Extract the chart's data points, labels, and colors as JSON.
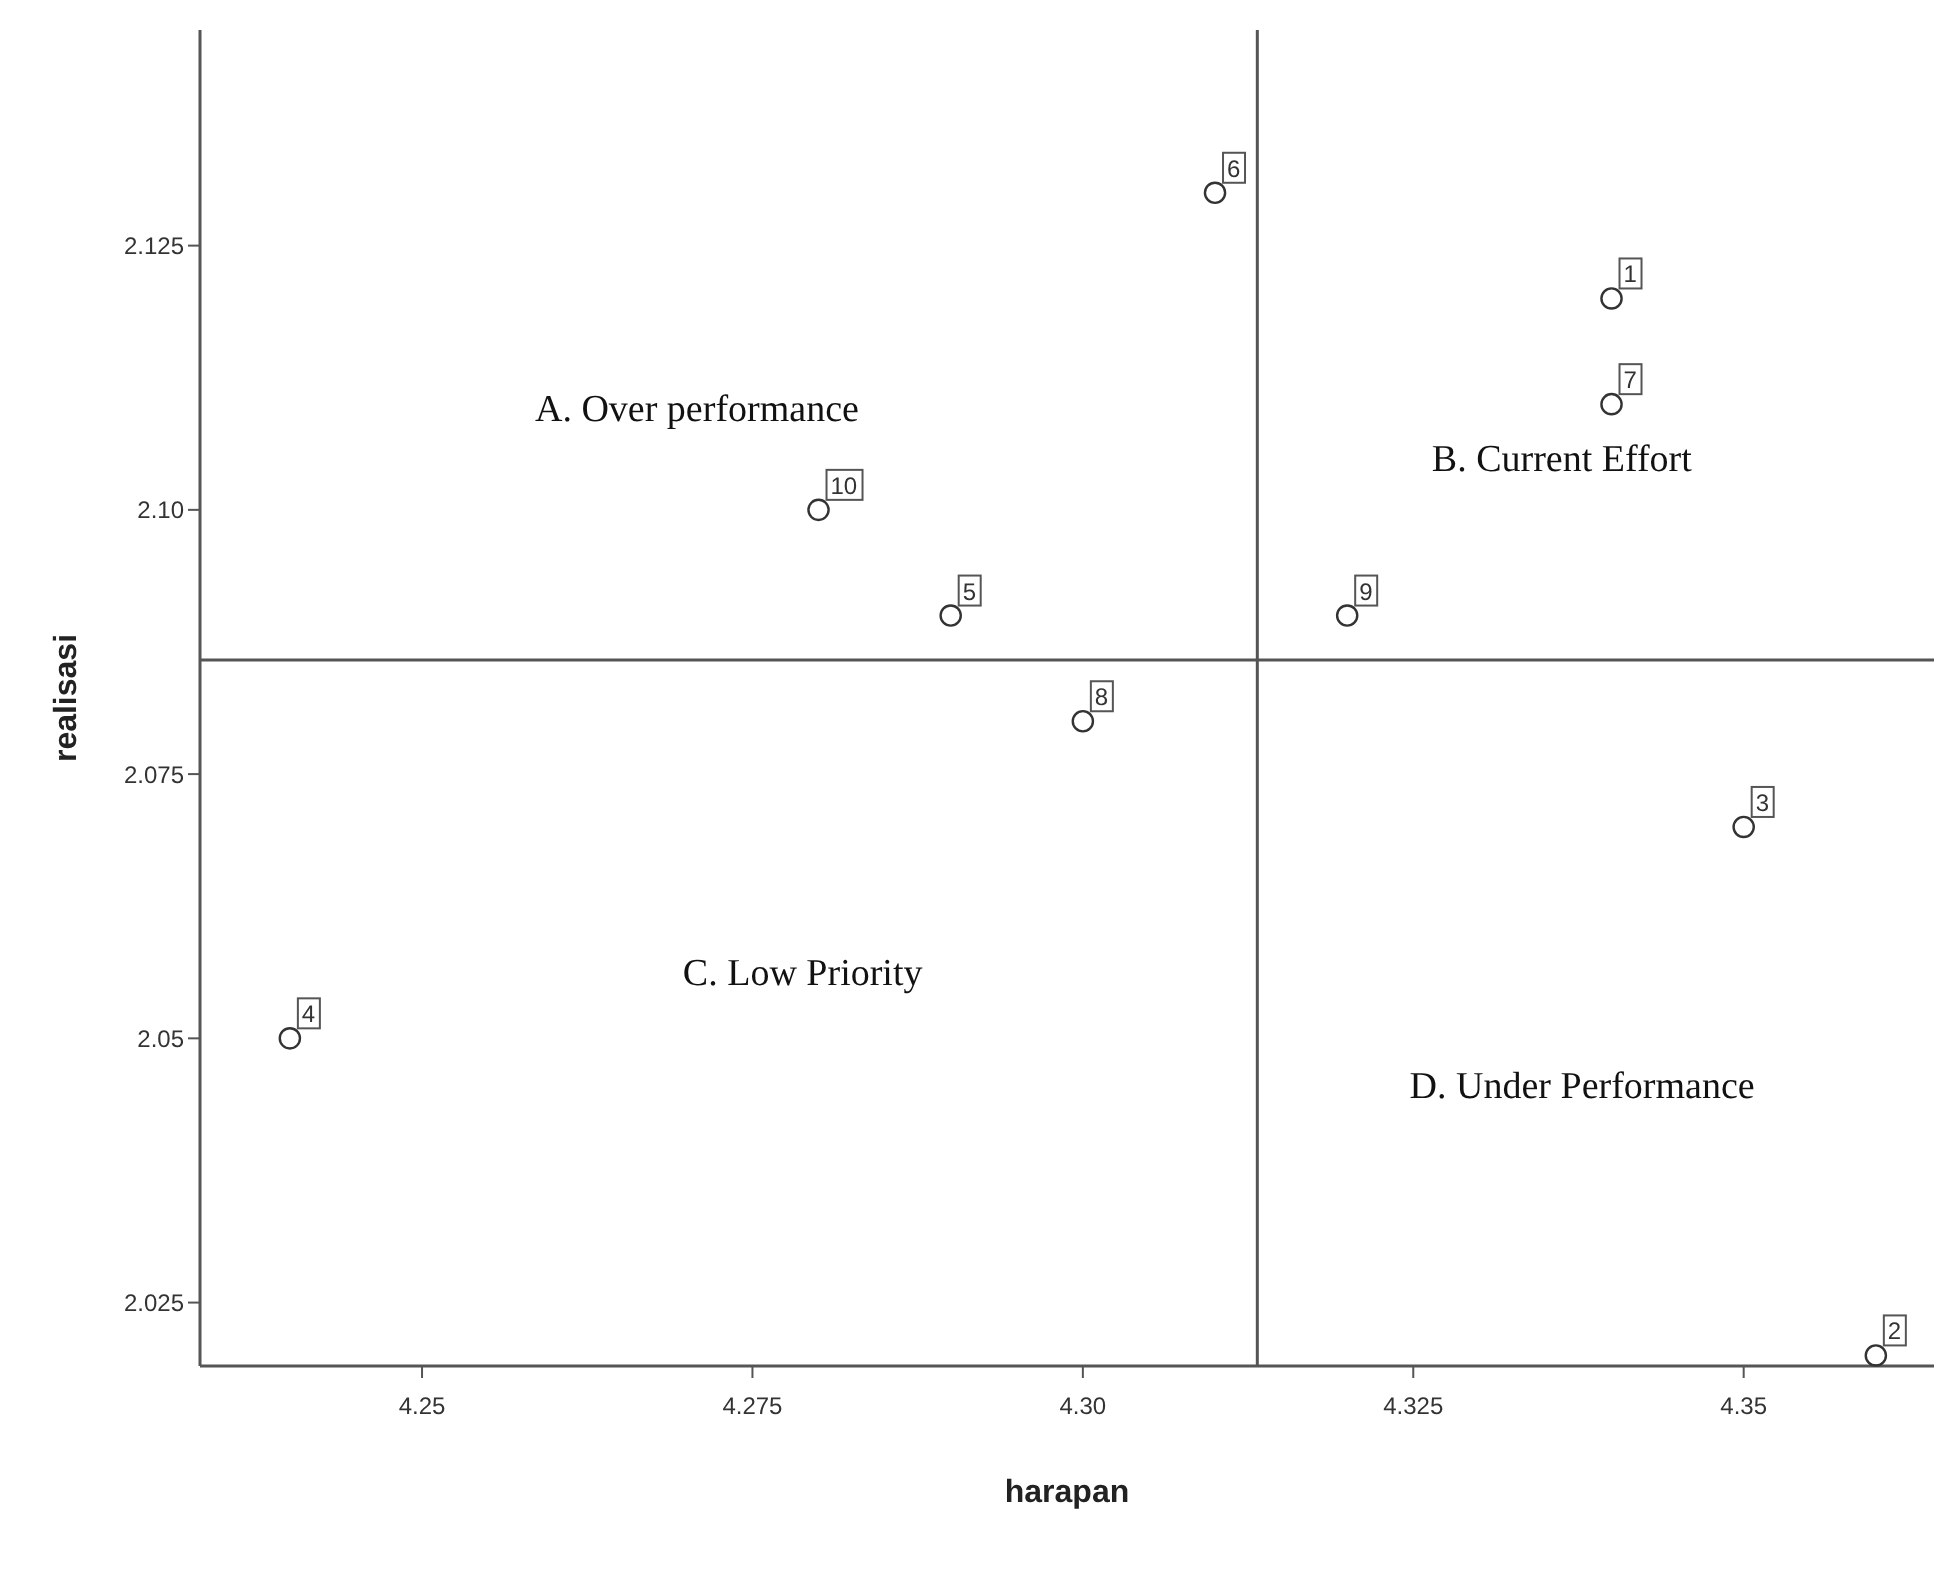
{
  "chart_data": {
    "type": "scatter",
    "xlabel": "harapan",
    "ylabel": "realisasi",
    "x": [
      4.34,
      4.36,
      4.35,
      4.24,
      4.29,
      4.31,
      4.34,
      4.3,
      4.32,
      4.28
    ],
    "values": [
      2.12,
      2.02,
      2.07,
      2.05,
      2.09,
      2.13,
      2.11,
      2.08,
      2.09,
      2.1
    ],
    "color": "#333333",
    "marker": "circle",
    "grid": false,
    "xlim": [
      4.2332,
      4.3644
    ],
    "xticks": [
      4.25,
      4.275,
      {
        "value": 4.3,
        "label": "4.30"
      },
      4.325,
      4.35
    ],
    "ylim": [
      2.019,
      2.1454
    ],
    "yticks": [
      2.025,
      2.05,
      2.075,
      {
        "value": 2.1,
        "label": "2.10"
      },
      2.125
    ],
    "ref_lines": [
      {
        "axis": "x",
        "value": 4.3132,
        "color": "#555555"
      },
      {
        "axis": "y",
        "value": 2.0858,
        "color": "#555555"
      }
    ],
    "annotations": [
      "A. Over performance",
      "B. Current Effort",
      "C. Low Priority",
      "D. Under Performance",
      {
        "text": "1",
        "x": 4.34,
        "y": 2.12
      },
      {
        "text": "2",
        "x": 4.36,
        "y": 2.02
      },
      {
        "text": "3",
        "x": 4.35,
        "y": 2.07
      },
      {
        "text": "4",
        "x": 4.24,
        "y": 2.05
      },
      {
        "text": "5",
        "x": 4.29,
        "y": 2.09
      },
      {
        "text": "6",
        "x": 4.31,
        "y": 2.13
      },
      {
        "text": "7",
        "x": 4.34,
        "y": 2.11
      },
      {
        "text": "8",
        "x": 4.3,
        "y": 2.08
      },
      {
        "text": "9",
        "x": 4.32,
        "y": 2.09
      },
      {
        "text": "10",
        "x": 4.28,
        "y": 2.1
      }
    ]
  }
}
